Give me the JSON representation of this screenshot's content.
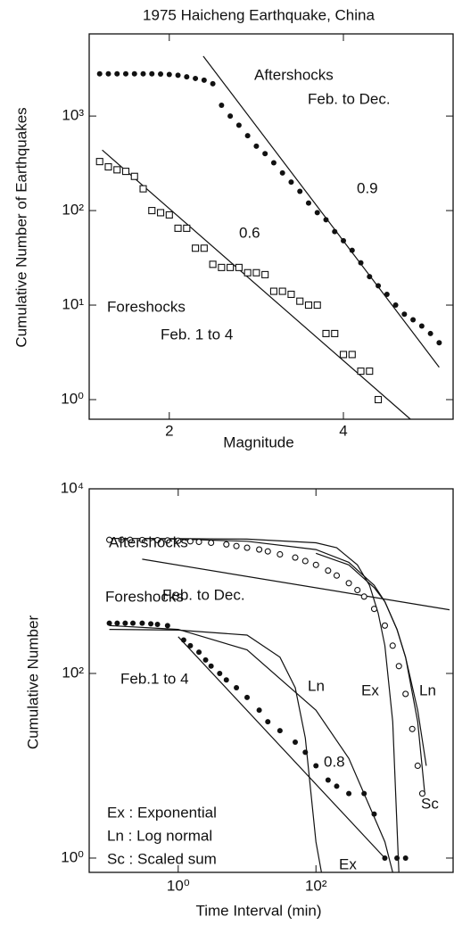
{
  "chart_data": [
    {
      "type": "scatter",
      "title": "1975 Haicheng Earthquake, China",
      "xlabel": "Magnitude",
      "ylabel": "Cumulative Number of Earthquakes",
      "xscale": "linear",
      "yscale": "log",
      "xlim": [
        1.08,
        5.26
      ],
      "ylim": [
        0.62,
        7400
      ],
      "xticks": [
        2,
        4
      ],
      "yticks": [
        {
          "value": 1,
          "label": "10⁰"
        },
        {
          "value": 10,
          "label": "10¹"
        },
        {
          "value": 100,
          "label": "10²"
        },
        {
          "value": 1000,
          "label": "10³"
        }
      ],
      "series": [
        {
          "name": "Aftershocks",
          "subtitle": "Feb. to Dec.",
          "marker": "dot",
          "color": "#111",
          "x": [
            1.2,
            1.3,
            1.4,
            1.5,
            1.6,
            1.7,
            1.8,
            1.9,
            2.0,
            2.1,
            2.2,
            2.3,
            2.4,
            2.5,
            2.6,
            2.7,
            2.8,
            2.9,
            3.0,
            3.1,
            3.2,
            3.3,
            3.4,
            3.5,
            3.6,
            3.7,
            3.8,
            3.9,
            4.0,
            4.1,
            4.2,
            4.3,
            4.4,
            4.5,
            4.6,
            4.7,
            4.8,
            4.9,
            5.0,
            5.1
          ],
          "values": [
            2800,
            2800,
            2800,
            2800,
            2800,
            2800,
            2800,
            2780,
            2750,
            2700,
            2600,
            2500,
            2400,
            2200,
            1300,
            1000,
            800,
            620,
            480,
            400,
            320,
            250,
            200,
            160,
            120,
            95,
            80,
            60,
            48,
            38,
            28,
            20,
            16,
            13,
            10,
            8,
            7,
            6,
            5,
            4
          ]
        },
        {
          "name": "Foreshocks",
          "subtitle": "Feb. 1 to 4",
          "marker": "square",
          "color": "#111",
          "x": [
            1.2,
            1.3,
            1.4,
            1.5,
            1.6,
            1.7,
            1.8,
            1.9,
            2.0,
            2.1,
            2.2,
            2.3,
            2.4,
            2.5,
            2.6,
            2.7,
            2.8,
            2.9,
            3.0,
            3.1,
            3.2,
            3.3,
            3.4,
            3.5,
            3.6,
            3.7,
            3.8,
            3.9,
            4.0,
            4.1,
            4.2,
            4.3,
            4.4
          ],
          "values": [
            330,
            290,
            270,
            260,
            230,
            170,
            100,
            95,
            90,
            65,
            65,
            40,
            40,
            27,
            25,
            25,
            25,
            22,
            22,
            21,
            14,
            14,
            13,
            11,
            10,
            10,
            5,
            5,
            3,
            3,
            2,
            2,
            1
          ]
        }
      ],
      "lines": [
        {
          "label": "0.9",
          "x": [
            2.39,
            5.1
          ],
          "values": [
            4300,
            2.2
          ]
        },
        {
          "label": "0.6",
          "x": [
            1.23,
            4.77
          ],
          "values": [
            437,
            0.62
          ]
        }
      ]
    },
    {
      "type": "scatter",
      "xlabel": "Time Interval (min)",
      "ylabel": "Cumulative Number",
      "xscale": "log",
      "yscale": "log",
      "xlim": [
        0.051,
        9800
      ],
      "ylim": [
        0.7,
        10000
      ],
      "xticks": [
        {
          "value": 1,
          "label": "10⁰"
        },
        {
          "value": 100,
          "label": "10²"
        }
      ],
      "yticks": [
        {
          "value": 1,
          "label": "10⁰"
        },
        {
          "value": 100,
          "label": "10²"
        },
        {
          "value": 10000,
          "label": "10⁴"
        }
      ],
      "series": [
        {
          "name": "Aftershocks",
          "subtitle": "Feb. to Dec.",
          "marker": "circle",
          "color": "#111",
          "x": [
            0.1,
            0.15,
            0.2,
            0.3,
            0.5,
            0.7,
            1,
            1.5,
            2,
            3,
            5,
            7,
            10,
            15,
            20,
            30,
            50,
            70,
            100,
            150,
            200,
            300,
            400,
            500,
            700,
            1000,
            1300,
            1600,
            2000,
            2500,
            3000,
            3500
          ],
          "values": [
            2800,
            2800,
            2800,
            2790,
            2780,
            2760,
            2740,
            2700,
            2660,
            2600,
            2500,
            2400,
            2300,
            2200,
            2100,
            1950,
            1800,
            1650,
            1500,
            1300,
            1150,
            950,
            800,
            680,
            500,
            330,
            200,
            120,
            60,
            25,
            10,
            5
          ]
        },
        {
          "name": "Foreshocks",
          "subtitle": "Feb.1 to 4",
          "marker": "dot",
          "color": "#111",
          "x": [
            0.1,
            0.13,
            0.17,
            0.22,
            0.3,
            0.4,
            0.5,
            0.7,
            1.2,
            1.5,
            2,
            2.5,
            3,
            4,
            5,
            7,
            10,
            15,
            20,
            30,
            50,
            70,
            100,
            150,
            200,
            300,
            500,
            700,
            1000,
            1500,
            2000
          ],
          "values": [
            350,
            350,
            350,
            350,
            350,
            345,
            340,
            330,
            230,
            200,
            170,
            140,
            120,
            100,
            85,
            70,
            55,
            40,
            30,
            24,
            18,
            14,
            10,
            7,
            6,
            5,
            5,
            3,
            1,
            1,
            1
          ]
        }
      ],
      "lines": [
        {
          "label": "Ex",
          "x": [
            0.1,
            1,
            10,
            100,
            200,
            400,
            600,
            800,
            1000,
            1300,
            1600
          ],
          "values": [
            2900,
            2890,
            2850,
            2600,
            2300,
            1500,
            900,
            450,
            200,
            30,
            0.7
          ]
        },
        {
          "label": "Ln",
          "x": [
            0.3,
            1,
            10,
            100,
            300,
            700,
            1000,
            1500,
            2000,
            3000,
            4000
          ],
          "values": [
            2900,
            2850,
            2700,
            2200,
            1600,
            900,
            600,
            300,
            150,
            40,
            10
          ]
        },
        {
          "label": "Sc",
          "x": [
            100,
            300,
            700,
            1000,
            1500,
            2000,
            3000,
            3800
          ],
          "values": [
            2000,
            1500,
            850,
            600,
            300,
            150,
            30,
            5
          ]
        },
        {
          "x": [
            0.3,
            8700
          ],
          "values": [
            1730,
            490
          ]
        },
        {
          "label": "Ex",
          "x": [
            0.1,
            1,
            10,
            30,
            50,
            70,
            100,
            120
          ],
          "values": [
            300,
            295,
            260,
            150,
            70,
            20,
            1.5,
            0.7
          ]
        },
        {
          "label": "Ln",
          "x": [
            0.1,
            1,
            10,
            100,
            300,
            1000,
            1300
          ],
          "values": [
            330,
            300,
            180,
            40,
            12,
            1.5,
            0.7
          ]
        },
        {
          "label": "0.8",
          "x": [
            1,
            1000
          ],
          "values": [
            250,
            1
          ]
        }
      ],
      "notes": [
        "Ex : Exponential",
        "Ln : Log normal",
        "Sc : Scaled sum"
      ]
    }
  ]
}
